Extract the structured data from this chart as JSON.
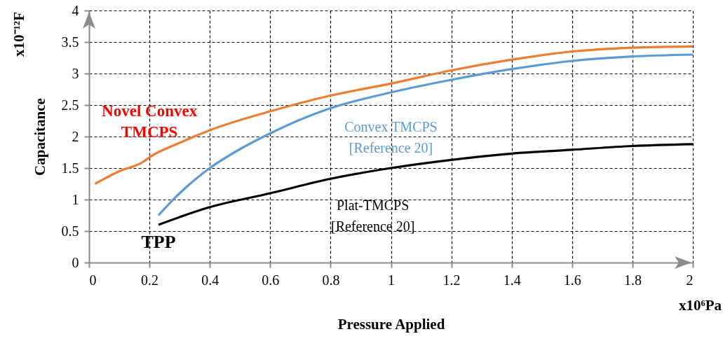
{
  "chart_data": {
    "type": "line",
    "xlabel": "Pressure Applied",
    "ylabel": "Capacitance",
    "xlim": [
      0,
      2
    ],
    "xticks": [
      0,
      0.2,
      0.4,
      0.6,
      0.8,
      1,
      1.2,
      1.4,
      1.6,
      1.8,
      2
    ],
    "ylim": [
      0,
      4
    ],
    "yticks": [
      0,
      0.5,
      1,
      1.5,
      2,
      2.5,
      3,
      3.5,
      4
    ],
    "grid": true,
    "legend": false,
    "marker": "none",
    "line_style": "solid",
    "annotations": [
      "x10⁻¹²F",
      "x10⁶Pa",
      {
        "text": "TPP",
        "x": 0.23,
        "y": 0.6
      }
    ],
    "series": [
      {
        "name": "Novel Convex TMCPS",
        "color": "#ed7d31",
        "x": [
          0.02,
          0.1,
          0.18,
          0.2,
          0.3,
          0.4,
          0.6,
          0.8,
          1.0,
          1.2,
          1.4,
          1.6,
          1.8,
          2.0
        ],
        "values": [
          1.25,
          1.45,
          1.6,
          1.67,
          1.9,
          2.1,
          2.4,
          2.65,
          2.84,
          3.05,
          3.22,
          3.35,
          3.41,
          3.43
        ]
      },
      {
        "name": "Convex TMCPS [Reference 20]",
        "color": "#5b9bd5",
        "x": [
          0.23,
          0.3,
          0.4,
          0.5,
          0.6,
          0.7,
          0.8,
          1.0,
          1.2,
          1.4,
          1.6,
          1.8,
          2.0
        ],
        "values": [
          0.75,
          1.1,
          1.5,
          1.8,
          2.05,
          2.27,
          2.45,
          2.7,
          2.9,
          3.07,
          3.2,
          3.27,
          3.3
        ]
      },
      {
        "name": "Plat-TMCPS [Reference 20]",
        "color": "#000000",
        "x": [
          0.23,
          0.4,
          0.6,
          0.8,
          1.0,
          1.2,
          1.4,
          1.6,
          1.8,
          2.0
        ],
        "values": [
          0.6,
          0.88,
          1.1,
          1.33,
          1.5,
          1.63,
          1.73,
          1.79,
          1.85,
          1.88
        ]
      }
    ]
  }
}
